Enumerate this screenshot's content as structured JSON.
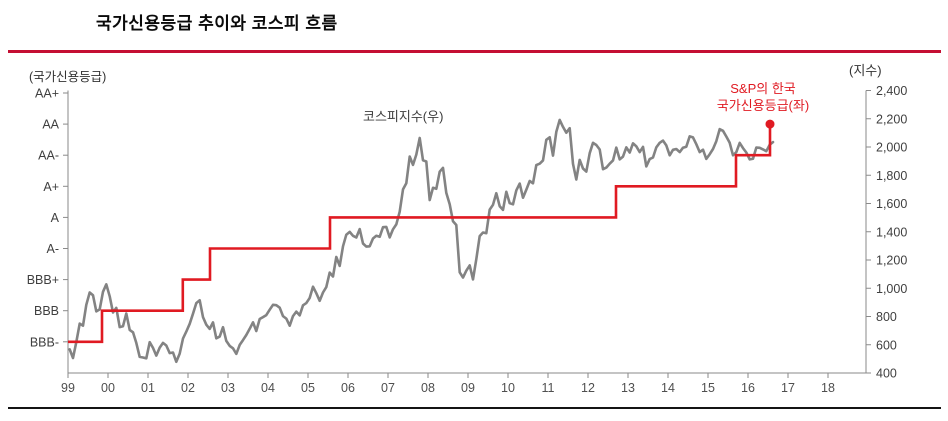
{
  "title": "국가신용등급 추이와 코스피 흐름",
  "colors": {
    "kospi_line": "#838383",
    "rating_line": "#e01a22",
    "top_rule": "#c40f33",
    "bottom_rule": "#141414",
    "axis": "#8a8a8a",
    "tick_text": "#3f3f3f",
    "year_text": "#4f4f4f"
  },
  "chart_data": {
    "type": "line",
    "title": "국가신용등급 추이와 코스피 흐름",
    "left_axis": {
      "label": "(국가신용등급)",
      "categories": [
        "AA+",
        "AA",
        "AA-",
        "A+",
        "A",
        "A-",
        "BBB+",
        "BBB",
        "BBB-"
      ]
    },
    "right_axis": {
      "label": "(지수)",
      "tick_labels": [
        "2,400",
        "2,200",
        "2,000",
        "1,800",
        "1,600",
        "1,400",
        "1,200",
        "1,000",
        "800",
        "600",
        "400"
      ],
      "tick_values": [
        2400,
        2200,
        2000,
        1800,
        1600,
        1400,
        1200,
        1000,
        800,
        600,
        400
      ],
      "range": [
        400,
        2400
      ]
    },
    "x_axis": {
      "tick_labels": [
        "99",
        "00",
        "01",
        "02",
        "03",
        "04",
        "05",
        "06",
        "07",
        "08",
        "09",
        "10",
        "11",
        "12",
        "13",
        "14",
        "15",
        "16",
        "17",
        "18"
      ],
      "start_year": 1999
    },
    "legend_position": "inline-annotations",
    "grid": false,
    "series": [
      {
        "name": "코스피지수(우)",
        "axis": "right",
        "kind": "monthly",
        "start_year": 1999,
        "values": [
          567,
          506,
          619,
          750,
          735,
          883,
          970,
          950,
          836,
          850,
          975,
          1028,
          943,
          828,
          861,
          725,
          731,
          821,
          705,
          688,
          613,
          514,
          510,
          504,
          618,
          578,
          523,
          580,
          613,
          595,
          541,
          545,
          479,
          537,
          644,
          693,
          748,
          820,
          895,
          915,
          796,
          742,
          712,
          758,
          646,
          658,
          724,
          627,
          592,
          575,
          535,
          599,
          633,
          669,
          713,
          759,
          697,
          782,
          796,
          810,
          848,
          883,
          880,
          862,
          803,
          785,
          735,
          803,
          835,
          808,
          879,
          895,
          932,
          1011,
          965,
          911,
          970,
          1008,
          1111,
          1083,
          1221,
          1158,
          1297,
          1379,
          1399,
          1371,
          1359,
          1419,
          1317,
          1295,
          1297,
          1352,
          1371,
          1364,
          1432,
          1434,
          1360,
          1417,
          1452,
          1542,
          1700,
          1743,
          1933,
          1873,
          1946,
          2064,
          1906,
          1897,
          1624,
          1711,
          1704,
          1825,
          1852,
          1675,
          1594,
          1474,
          1448,
          1113,
          1076,
          1124,
          1162,
          1063,
          1206,
          1369,
          1395,
          1390,
          1557,
          1591,
          1673,
          1581,
          1555,
          1683,
          1602,
          1594,
          1693,
          1741,
          1641,
          1698,
          1759,
          1743,
          1872,
          1882,
          1905,
          2051,
          2069,
          1939,
          2107,
          2192,
          2142,
          2101,
          2133,
          1880,
          1770,
          1909,
          1848,
          1826,
          1956,
          2030,
          2014,
          1982,
          1843,
          1854,
          1882,
          1905,
          1996,
          1912,
          1932,
          1997,
          1961,
          2026,
          2005,
          1964,
          2001,
          1863,
          1914,
          1926,
          1997,
          2030,
          2045,
          2011,
          1941,
          1980,
          1986,
          1964,
          1995,
          2002,
          2076,
          2068,
          2020,
          1964,
          1981,
          1916,
          1949,
          1986,
          2041,
          2127,
          2115,
          2074,
          2030,
          1941,
          1963,
          2029,
          1992,
          1961,
          1912,
          1917,
          1996,
          1994,
          1983,
          1970,
          2016,
          2035
        ]
      },
      {
        "name": "S&P의 한국 국가신용등급(좌)",
        "axis": "left",
        "kind": "step",
        "end_marker": true,
        "steps": [
          {
            "year": 1999.0,
            "rating": "BBB-"
          },
          {
            "year": 1999.85,
            "rating": "BBB"
          },
          {
            "year": 2001.87,
            "rating": "BBB+"
          },
          {
            "year": 2002.55,
            "rating": "A-"
          },
          {
            "year": 2005.55,
            "rating": "A"
          },
          {
            "year": 2012.7,
            "rating": "A+"
          },
          {
            "year": 2015.7,
            "rating": "AA-"
          },
          {
            "year": 2016.55,
            "rating": "AA"
          }
        ]
      }
    ],
    "annotations": [
      {
        "id": "kospi",
        "text": "코스피지수(우)"
      },
      {
        "id": "rating",
        "line1": "S&P의 한국",
        "line2": "국가신용등급(좌)"
      }
    ]
  }
}
